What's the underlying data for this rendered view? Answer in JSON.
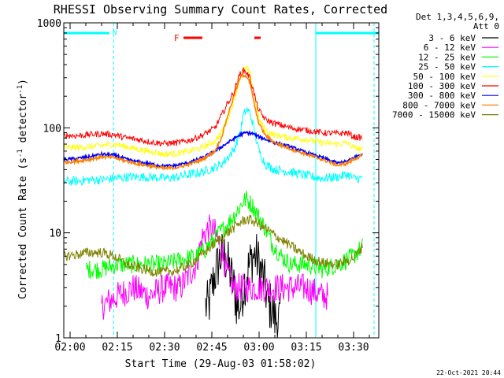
{
  "chart_data": {
    "type": "line",
    "title": "RHESSI Observing Summary Count Rates, Corrected",
    "xlabel": "Start Time (29-Aug-03 01:58:02)",
    "ylabel": "Corrected Count Rate (s⁻¹ detector⁻¹)",
    "ylabel_parts": [
      "Corrected Count Rate (s",
      "-1",
      " detector",
      "-1",
      ")"
    ],
    "yscale": "log",
    "xlim_minutes": [
      -2,
      98
    ],
    "ylim": [
      1,
      1000
    ],
    "x_ticks": [
      {
        "minute": 0,
        "label": "02:00"
      },
      {
        "minute": 15,
        "label": "02:15"
      },
      {
        "minute": 30,
        "label": "02:30"
      },
      {
        "minute": 45,
        "label": "02:45"
      },
      {
        "minute": 60,
        "label": "03:00"
      },
      {
        "minute": 75,
        "label": "03:15"
      },
      {
        "minute": 90,
        "label": "03:30"
      }
    ],
    "y_ticks": [
      {
        "value": 1,
        "label": "1"
      },
      {
        "value": 10,
        "label": "10"
      },
      {
        "value": 100,
        "label": "100"
      },
      {
        "value": 1000,
        "label": "1000"
      }
    ],
    "legend_header": [
      "Det 1,3,4,5,6,9,",
      "Att 0"
    ],
    "legend_position": "right",
    "series": [
      {
        "name": "3 - 6 keV",
        "color": "#000000",
        "x": [
          43,
          44,
          45,
          46,
          47,
          48,
          49,
          50,
          51,
          52,
          53,
          54,
          55,
          56,
          57,
          58,
          59,
          60,
          61,
          62,
          63,
          64,
          65,
          66,
          67
        ],
        "y": [
          2,
          2,
          3,
          4,
          5,
          6,
          6,
          5,
          4,
          3,
          2,
          2,
          3,
          4,
          5,
          6,
          6,
          5,
          4,
          3,
          2,
          2,
          1.5,
          1.5,
          1.5
        ]
      },
      {
        "name": "6 - 12 keV",
        "color": "#ff00ff",
        "x": [
          10,
          15,
          20,
          25,
          30,
          35,
          40,
          42,
          44,
          46,
          48,
          50,
          52,
          55,
          58,
          60,
          62,
          65,
          70,
          75,
          80,
          82
        ],
        "y": [
          2,
          2.5,
          3,
          2.5,
          3,
          3,
          5,
          9,
          11,
          10,
          7,
          4,
          3,
          3,
          3,
          3,
          3,
          3,
          3,
          3,
          2.5,
          2.5
        ]
      },
      {
        "name": "12 - 25 keV",
        "color": "#00ff00",
        "x": [
          5,
          10,
          15,
          20,
          25,
          30,
          35,
          40,
          43,
          46,
          50,
          53,
          55,
          56,
          58,
          60,
          62,
          64,
          67,
          70,
          75,
          80,
          85,
          90,
          93
        ],
        "y": [
          4.5,
          4.5,
          5,
          5,
          5,
          5,
          5.5,
          6,
          7,
          9,
          12,
          16,
          20,
          21,
          18,
          14,
          11,
          8,
          6,
          5,
          5,
          4.5,
          5,
          6,
          7.5
        ]
      },
      {
        "name": "25 - 50 keV",
        "color": "#00ffff",
        "x": [
          -2,
          2,
          6,
          10,
          14,
          18,
          22,
          26,
          30,
          34,
          38,
          42,
          46,
          48,
          50,
          52,
          54,
          55,
          56,
          57,
          58,
          59,
          60,
          62,
          65,
          70,
          75,
          80,
          85,
          88,
          90,
          93
        ],
        "y": [
          31,
          31,
          32,
          32,
          33,
          34,
          34,
          34,
          33,
          34,
          36,
          38,
          42,
          45,
          52,
          62,
          90,
          130,
          150,
          140,
          110,
          80,
          60,
          45,
          40,
          38,
          35,
          33,
          34,
          36,
          33,
          33
        ]
      },
      {
        "name": "50 - 100 keV",
        "color": "#ffff00",
        "x": [
          -2,
          2,
          6,
          10,
          14,
          18,
          22,
          26,
          30,
          34,
          38,
          42,
          46,
          48,
          50,
          52,
          54,
          55,
          56,
          57,
          58,
          59,
          60,
          62,
          65,
          70,
          75,
          80,
          85,
          88,
          90,
          93
        ],
        "y": [
          65,
          65,
          66,
          68,
          70,
          66,
          62,
          59,
          56,
          57,
          60,
          65,
          75,
          90,
          120,
          180,
          300,
          360,
          370,
          330,
          250,
          170,
          120,
          95,
          85,
          80,
          78,
          72,
          70,
          72,
          65,
          62
        ]
      },
      {
        "name": "100 - 300 keV",
        "color": "#ff0000",
        "x": [
          -2,
          2,
          6,
          10,
          14,
          18,
          22,
          26,
          30,
          34,
          38,
          42,
          46,
          48,
          50,
          52,
          54,
          55,
          56,
          57,
          58,
          59,
          60,
          62,
          65,
          70,
          75,
          80,
          85,
          88,
          90,
          93
        ],
        "y": [
          85,
          84,
          86,
          88,
          86,
          80,
          77,
          73,
          71,
          72,
          76,
          85,
          100,
          130,
          170,
          220,
          330,
          350,
          340,
          300,
          240,
          180,
          145,
          120,
          110,
          100,
          95,
          90,
          88,
          90,
          82,
          80
        ]
      },
      {
        "name": "300 - 800 keV",
        "color": "#0000ff",
        "x": [
          -2,
          2,
          6,
          10,
          14,
          18,
          22,
          26,
          30,
          34,
          38,
          42,
          46,
          50,
          54,
          56,
          58,
          60,
          62,
          65,
          70,
          75,
          80,
          85,
          88,
          90,
          93
        ],
        "y": [
          50,
          51,
          53,
          56,
          55,
          50,
          47,
          45,
          43,
          44,
          47,
          52,
          60,
          72,
          86,
          90,
          88,
          82,
          78,
          72,
          66,
          58,
          52,
          46,
          48,
          52,
          57
        ]
      },
      {
        "name": "800 - 7000 keV",
        "color": "#ff8000",
        "x": [
          -2,
          2,
          6,
          10,
          14,
          18,
          22,
          26,
          30,
          34,
          38,
          42,
          46,
          48,
          50,
          52,
          54,
          55,
          56,
          57,
          58,
          59,
          60,
          62,
          65,
          70,
          75,
          80,
          85,
          88,
          90,
          93
        ],
        "y": [
          47,
          48,
          50,
          53,
          52,
          48,
          45,
          43,
          41,
          42,
          45,
          50,
          60,
          80,
          130,
          200,
          300,
          320,
          310,
          270,
          200,
          140,
          110,
          85,
          72,
          63,
          56,
          50,
          44,
          46,
          50,
          55
        ]
      },
      {
        "name": "7000 - 15000 keV",
        "color": "#808000",
        "x": [
          -2,
          2,
          6,
          10,
          14,
          18,
          22,
          26,
          30,
          34,
          38,
          42,
          46,
          50,
          54,
          56,
          58,
          60,
          62,
          65,
          70,
          75,
          80,
          85,
          90,
          93
        ],
        "y": [
          6,
          6.2,
          6.5,
          6.5,
          6,
          5,
          4.6,
          4.3,
          4.2,
          4.4,
          5,
          6.2,
          8,
          10,
          12.5,
          13.5,
          13,
          12,
          11,
          9.5,
          7.5,
          6,
          5.2,
          5,
          5.8,
          7.5
        ]
      }
    ],
    "flare_marker": {
      "label": "F",
      "color": "#ff0000",
      "segments": [
        [
          36,
          42
        ],
        [
          58.5,
          60.5
        ]
      ]
    },
    "night_marker": {
      "label": "N",
      "color": "#00ffff",
      "segments": [
        [
          -2,
          12.5
        ],
        [
          78,
          98
        ]
      ]
    },
    "night_lines_solid": [
      -2,
      78
    ],
    "night_lines_dashed": [
      13.8,
      96.5
    ],
    "footer_date": "22-Oct-2021 20:44"
  }
}
